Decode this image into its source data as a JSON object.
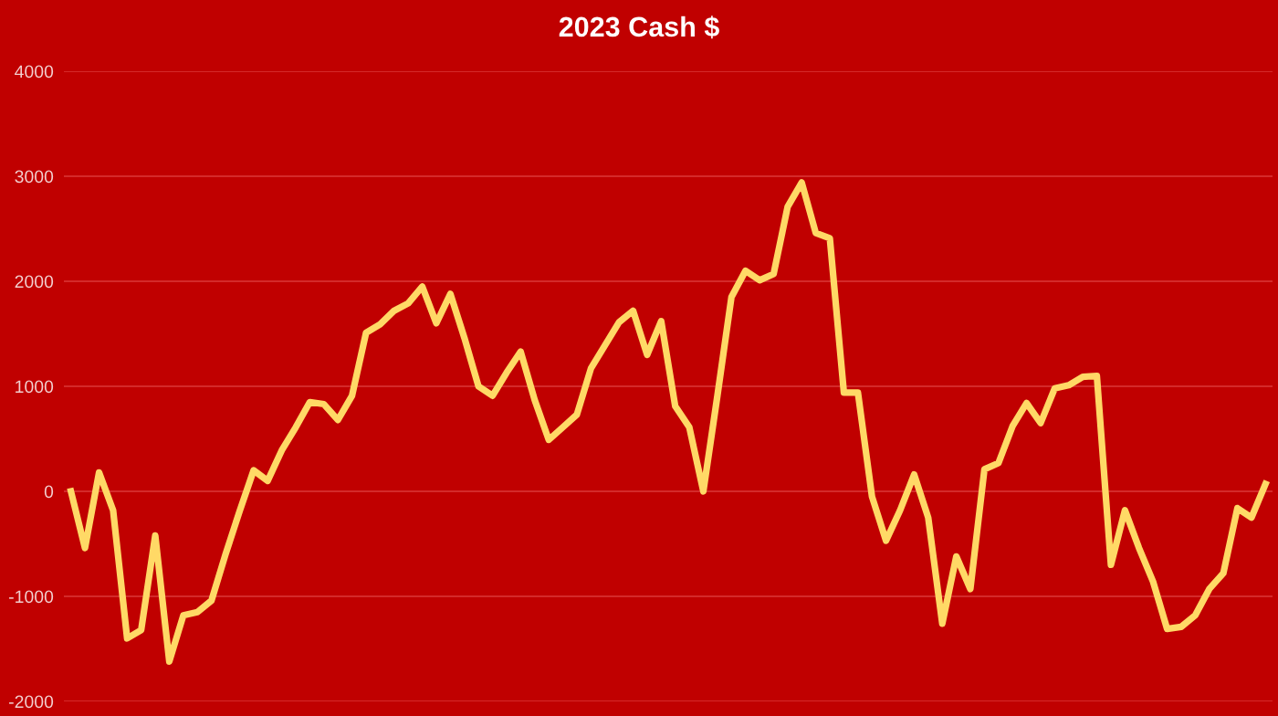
{
  "chart_data": {
    "type": "line",
    "title": "2023 Cash $",
    "categories": [
      null,
      null,
      null,
      null,
      null,
      null,
      null,
      null,
      null,
      null,
      null,
      null,
      null,
      null,
      null,
      null,
      null,
      null,
      null,
      null,
      null,
      null,
      null,
      null,
      null,
      null,
      null,
      null,
      null,
      null,
      null,
      null,
      null,
      null,
      null,
      null,
      null,
      null,
      null,
      null,
      null,
      null,
      null,
      null,
      null,
      null,
      null,
      null,
      null,
      null,
      null,
      null,
      null,
      null,
      null,
      null,
      null,
      null,
      null,
      null,
      null,
      null,
      null,
      null,
      null,
      null,
      null,
      null,
      null,
      null,
      null,
      null,
      null,
      null,
      null,
      null,
      null,
      null,
      null,
      null,
      null,
      null,
      null,
      null,
      null,
      null
    ],
    "series": [
      {
        "color": "#ffd966",
        "values": [
          0,
          -540,
          180,
          -180,
          -1400,
          -1320,
          -420,
          -1620,
          -1180,
          -1150,
          -1040,
          -600,
          -190,
          200,
          100,
          390,
          610,
          850,
          830,
          680,
          910,
          1510,
          1590,
          1720,
          1790,
          1950,
          1600,
          1880,
          1460,
          1000,
          910,
          1130,
          1330,
          870,
          490,
          610,
          730,
          1170,
          1390,
          1610,
          1720,
          1300,
          1620,
          810,
          610,
          0,
          910,
          1850,
          2100,
          2010,
          2070,
          2710,
          2940,
          2460,
          2410,
          940,
          940,
          -50,
          -470,
          -180,
          160,
          -250,
          -1260,
          -620,
          -930,
          210,
          270,
          620,
          840,
          650,
          980,
          1010,
          1090,
          1100,
          -700,
          -180,
          -540,
          -860,
          -1310,
          -1290,
          -1180,
          -930,
          -780,
          -160,
          -250,
          70
        ]
      }
    ],
    "ylim": [
      -2000,
      4000
    ],
    "yticks": [
      -2000,
      -1000,
      0,
      1000,
      2000,
      3000,
      4000
    ],
    "grid": "y",
    "line_style": "solid",
    "marker": "none",
    "tick_labels": "y"
  }
}
